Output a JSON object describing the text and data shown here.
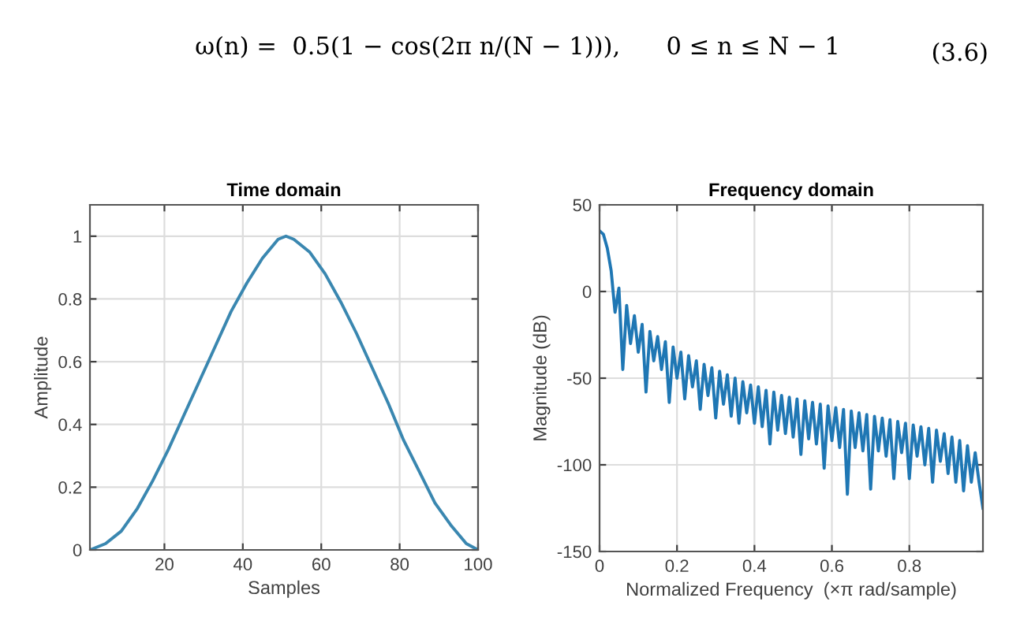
{
  "chart_data": [
    {
      "type": "line",
      "title": "Time domain",
      "xlabel": "Samples",
      "ylabel": "Amplitude",
      "annotations": [
        "ω(n) =  0.5(1 − cos(2π n/(N − 1))),      0 ≤ n ≤ N − 1",
        "(3.6)"
      ],
      "xlim": [
        1,
        100
      ],
      "xticks": [
        20,
        40,
        60,
        80,
        100
      ],
      "ylim": [
        0,
        1.1
      ],
      "yticks": [
        0,
        0.2,
        0.4,
        0.6,
        0.8,
        1
      ],
      "grid": true,
      "series": [
        {
          "color": "#3a87b0",
          "x": [
            1,
            5,
            9,
            13,
            17,
            21,
            25,
            29,
            33,
            37,
            41,
            45,
            49,
            51,
            53,
            57,
            61,
            65,
            69,
            73,
            77,
            81,
            85,
            89,
            93,
            97,
            100
          ],
          "values": [
            0,
            0.02,
            0.06,
            0.13,
            0.22,
            0.32,
            0.43,
            0.54,
            0.65,
            0.76,
            0.85,
            0.93,
            0.99,
            1,
            0.99,
            0.95,
            0.88,
            0.79,
            0.69,
            0.58,
            0.47,
            0.35,
            0.25,
            0.15,
            0.08,
            0.02,
            0
          ]
        }
      ]
    },
    {
      "type": "line",
      "title": "Frequency domain",
      "xlabel": "Normalized Frequency  (×π rad/sample)",
      "ylabel": "Magnitude (dB)",
      "xlim": [
        0,
        0.99
      ],
      "xticks": [
        0,
        0.2,
        0.4,
        0.6,
        0.8
      ],
      "ylim": [
        -150,
        50
      ],
      "yticks": [
        -150,
        -100,
        -50,
        0,
        50
      ],
      "grid": true,
      "series": [
        {
          "color": "#1f77b4",
          "x": [
            0,
            0.01,
            0.02,
            0.03,
            0.04,
            0.05,
            0.06,
            0.07,
            0.08,
            0.09,
            0.1,
            0.11,
            0.12,
            0.13,
            0.14,
            0.15,
            0.16,
            0.17,
            0.18,
            0.19,
            0.2,
            0.21,
            0.22,
            0.23,
            0.24,
            0.25,
            0.26,
            0.27,
            0.28,
            0.29,
            0.3,
            0.31,
            0.32,
            0.33,
            0.34,
            0.35,
            0.36,
            0.37,
            0.38,
            0.39,
            0.4,
            0.41,
            0.42,
            0.43,
            0.44,
            0.45,
            0.46,
            0.47,
            0.48,
            0.49,
            0.5,
            0.51,
            0.52,
            0.53,
            0.54,
            0.55,
            0.56,
            0.57,
            0.58,
            0.59,
            0.6,
            0.61,
            0.62,
            0.63,
            0.64,
            0.65,
            0.66,
            0.67,
            0.68,
            0.69,
            0.7,
            0.71,
            0.72,
            0.73,
            0.74,
            0.75,
            0.76,
            0.77,
            0.78,
            0.79,
            0.8,
            0.81,
            0.82,
            0.83,
            0.84,
            0.85,
            0.86,
            0.87,
            0.88,
            0.89,
            0.9,
            0.91,
            0.92,
            0.93,
            0.94,
            0.95,
            0.96,
            0.97,
            0.98,
            0.99
          ],
          "values": [
            35,
            33,
            25,
            12,
            -12,
            2,
            -45,
            -8,
            -30,
            -14,
            -35,
            -19,
            -58,
            -23,
            -40,
            -26,
            -45,
            -29,
            -64,
            -32,
            -50,
            -35,
            -62,
            -37,
            -55,
            -40,
            -68,
            -42,
            -60,
            -44,
            -73,
            -46,
            -65,
            -48,
            -72,
            -50,
            -76,
            -52,
            -70,
            -54,
            -76,
            -55,
            -78,
            -57,
            -88,
            -58,
            -80,
            -60,
            -82,
            -61,
            -84,
            -62,
            -94,
            -63,
            -85,
            -64,
            -88,
            -65,
            -102,
            -66,
            -86,
            -67,
            -90,
            -68,
            -117,
            -69,
            -90,
            -70,
            -92,
            -71,
            -114,
            -72,
            -92,
            -73,
            -95,
            -74,
            -108,
            -75,
            -93,
            -76,
            -108,
            -77,
            -95,
            -78,
            -100,
            -79,
            -110,
            -80,
            -98,
            -82,
            -105,
            -84,
            -110,
            -86,
            -115,
            -89,
            -110,
            -93,
            -110,
            -125
          ]
        }
      ]
    }
  ]
}
